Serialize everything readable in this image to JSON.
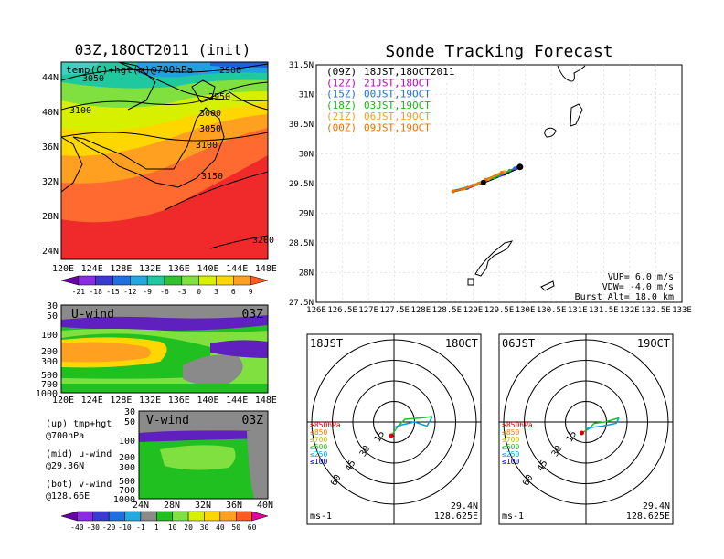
{
  "colors": {
    "sonde_series": [
      "#000000",
      "#c000c0",
      "#1e6fe8",
      "#18b818",
      "#f0a020",
      "#f07000"
    ],
    "altitude_legend": [
      "#e00000",
      "#f08000",
      "#c0c000",
      "#20c020",
      "#00a0e0",
      "#0000d0"
    ]
  },
  "chart_data": [
    {
      "type": "heatmap",
      "title": "03Z,18OCT2011 (init)",
      "overlay_label": "temp(C)+hgt(m)@700hPa",
      "x_ticks": [
        "120E",
        "124E",
        "128E",
        "132E",
        "136E",
        "140E",
        "144E",
        "148E"
      ],
      "y_ticks": [
        "24N",
        "28N",
        "32N",
        "36N",
        "40N",
        "44N"
      ],
      "contour_labels": [
        "3050",
        "2900",
        "2950",
        "3000",
        "3100",
        "3050",
        "3100",
        "3150",
        "3200"
      ],
      "colorbar_ticks": [
        "-21",
        "-18",
        "-15",
        "-12",
        "-9",
        "-6",
        "-3",
        "0",
        "3",
        "6",
        "9"
      ]
    },
    {
      "type": "heatmap",
      "title": "U-wind",
      "time_label": "03Z",
      "y_ticks": [
        "30",
        "50",
        "100",
        "200",
        "300",
        "500",
        "700",
        "1000"
      ],
      "x_ticks": [
        "120E",
        "124E",
        "128E",
        "132E",
        "136E",
        "140E",
        "144E",
        "148E"
      ]
    },
    {
      "type": "heatmap",
      "title": "V-wind",
      "time_label": "03Z",
      "y_ticks": [
        "30",
        "50",
        "100",
        "200",
        "300",
        "500",
        "700",
        "1000"
      ],
      "x_ticks": [
        "24N",
        "28N",
        "32N",
        "36N",
        "40N"
      ],
      "colorbar_ticks": [
        "-40",
        "-30",
        "-20",
        "-10",
        "-1",
        "1",
        "10",
        "20",
        "30",
        "40",
        "50",
        "60"
      ]
    },
    {
      "type": "line",
      "title": "Sonde Tracking Forecast",
      "x_ticks": [
        "126E",
        "126.5E",
        "127E",
        "127.5E",
        "128E",
        "128.5E",
        "129E",
        "129.5E",
        "130E",
        "130.5E",
        "131E",
        "131.5E",
        "132E",
        "132.5E",
        "133E"
      ],
      "y_ticks": [
        "27.5N",
        "28N",
        "28.5N",
        "29N",
        "29.5N",
        "30N",
        "30.5N",
        "31N",
        "31.5N"
      ],
      "xlim": [
        126,
        133
      ],
      "ylim": [
        27.5,
        31.5
      ],
      "legend": [
        {
          "code": "(09Z)",
          "text": "18JST,18OCT2011"
        },
        {
          "code": "(12Z)",
          "text": "21JST,18OCT"
        },
        {
          "code": "(15Z)",
          "text": "00JST,19OCT"
        },
        {
          "code": "(18Z)",
          "text": "03JST,19OCT"
        },
        {
          "code": "(21Z)",
          "text": "06JST,19OCT"
        },
        {
          "code": "(00Z)",
          "text": "09JST,19OCT"
        }
      ],
      "series": [
        {
          "points": [
            [
              129.9,
              29.78
            ],
            [
              129.6,
              29.66
            ],
            [
              129.2,
              29.52
            ],
            [
              128.9,
              29.43
            ],
            [
              128.62,
              29.37
            ]
          ]
        },
        {
          "points": [
            [
              129.85,
              29.77
            ],
            [
              129.55,
              29.65
            ],
            [
              129.2,
              29.53
            ],
            [
              128.9,
              29.43
            ],
            [
              128.62,
              29.37
            ]
          ]
        },
        {
          "points": [
            [
              129.8,
              29.76
            ],
            [
              129.5,
              29.63
            ],
            [
              129.15,
              29.51
            ],
            [
              128.88,
              29.42
            ],
            [
              128.62,
              29.37
            ]
          ]
        },
        {
          "points": [
            [
              129.7,
              29.72
            ],
            [
              129.4,
              29.6
            ],
            [
              129.1,
              29.5
            ],
            [
              128.85,
              29.42
            ],
            [
              128.62,
              29.37
            ]
          ]
        },
        {
          "points": [
            [
              129.6,
              29.7
            ],
            [
              129.3,
              29.58
            ],
            [
              129.05,
              29.48
            ],
            [
              128.82,
              29.41
            ],
            [
              128.62,
              29.37
            ]
          ]
        },
        {
          "points": [
            [
              129.55,
              29.69
            ],
            [
              129.25,
              29.57
            ],
            [
              129.0,
              29.47
            ],
            [
              128.8,
              29.41
            ],
            [
              128.62,
              29.37
            ]
          ]
        }
      ],
      "notes": [
        "VUP=  6.0  m/s",
        "VDW= -4.0  m/s",
        "Burst Alt=  18.0  km"
      ]
    },
    {
      "type": "line",
      "title_left": "18JST",
      "title_right": "18OCT",
      "ring_labels": [
        "15",
        "30",
        "45",
        "60"
      ],
      "altitude_legend": [
        "≥850hPa",
        "≤850",
        "≤700",
        "≤500",
        "≤250",
        "≤100"
      ],
      "unit": "ms-1",
      "location": [
        "29.4N",
        "128.625E"
      ],
      "series": [
        {
          "points": [
            [
              -2,
              -10
            ],
            [
              3,
              -3
            ],
            [
              8,
              2
            ],
            [
              20,
              3
            ],
            [
              28,
              4
            ]
          ]
        },
        {
          "points": [
            [
              28,
              4
            ],
            [
              24,
              -3
            ],
            [
              15,
              0
            ],
            [
              6,
              -2
            ],
            [
              0,
              -4
            ]
          ]
        }
      ]
    },
    {
      "type": "line",
      "title_left": "06JST",
      "title_right": "19OCT",
      "ring_labels": [
        "15",
        "30",
        "45",
        "60"
      ],
      "altitude_legend": [
        "≥850hPa",
        "≤850",
        "≤700",
        "≤500",
        "≤250",
        "≤100"
      ],
      "unit": "ms-1",
      "location": [
        "29.4N",
        "128.625E"
      ],
      "series": [
        {
          "points": [
            [
              -3,
              -8
            ],
            [
              2,
              -5
            ],
            [
              6,
              -1
            ],
            [
              14,
              0
            ],
            [
              24,
              3
            ]
          ]
        },
        {
          "points": [
            [
              24,
              3
            ],
            [
              22,
              -1
            ],
            [
              12,
              -3
            ],
            [
              4,
              -4
            ],
            [
              0,
              -5
            ]
          ]
        }
      ]
    }
  ],
  "side_notes": [
    [
      "(up) tmp+hgt",
      "     @700hPa"
    ],
    [
      "(mid) u-wind",
      "     @29.36N"
    ],
    [
      "(bot) v-wind",
      "     @128.66E"
    ]
  ]
}
